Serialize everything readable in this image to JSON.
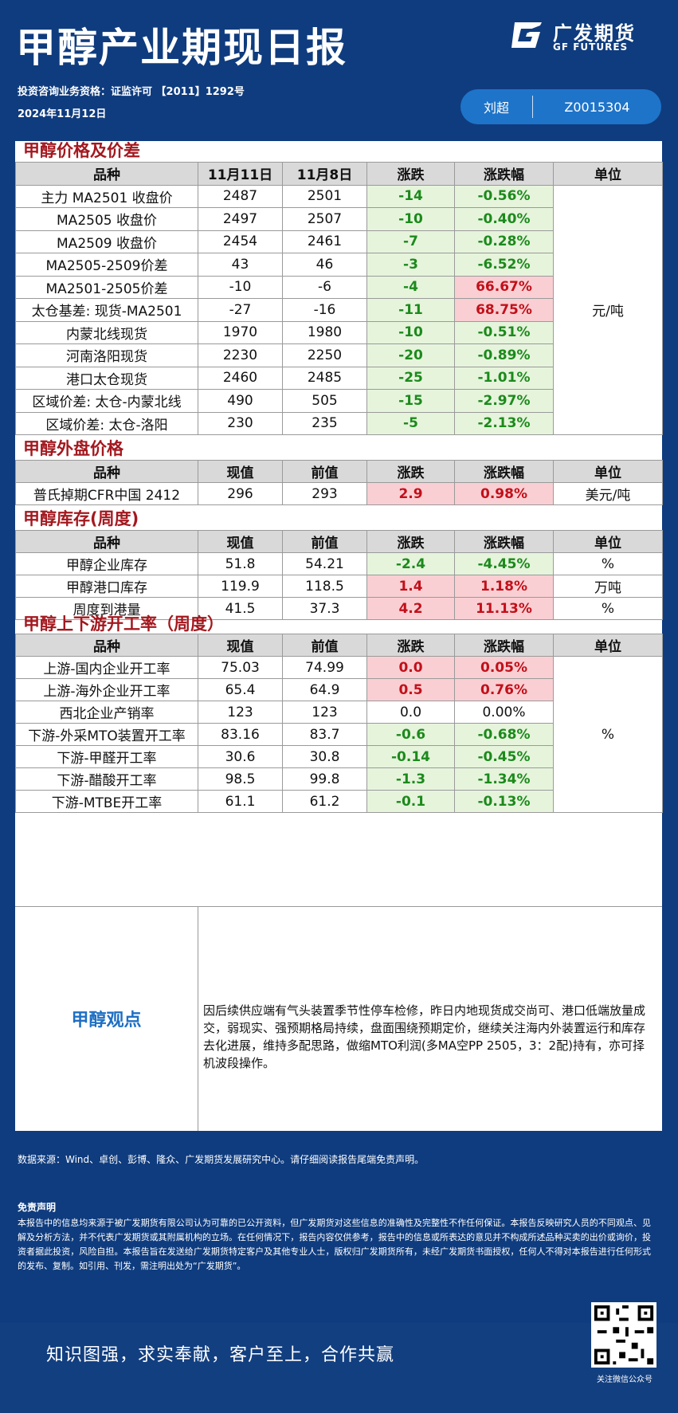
{
  "header": {
    "title": "甲醇产业期现日报",
    "logo_cn": "广发期货",
    "logo_en": "GF FUTURES",
    "license": "投资咨询业务资格：证监许可 【2011】1292号",
    "date": "2024年11月12日",
    "analyst_name": "刘超",
    "analyst_id": "Z0015304"
  },
  "colors": {
    "background": "#0f3c7e",
    "section_title": "#a3181f",
    "down": "#1c8a1c",
    "up": "#c2101a",
    "view_label": "#1e6fc4"
  },
  "sections": {
    "price": {
      "title": "甲醇价格及价差",
      "headers": [
        "品种",
        "11月11日",
        "11月8日",
        "涨跌",
        "涨跌幅",
        "单位"
      ],
      "unit": "元/吨",
      "rows": [
        {
          "name": "主力 MA2501 收盘价",
          "v1": "2487",
          "v2": "2501",
          "chg": "-14",
          "pct": "-0.56%",
          "chg_t": "g",
          "pct_t": "g"
        },
        {
          "name": "MA2505 收盘价",
          "v1": "2497",
          "v2": "2507",
          "chg": "-10",
          "pct": "-0.40%",
          "chg_t": "g",
          "pct_t": "g"
        },
        {
          "name": "MA2509 收盘价",
          "v1": "2454",
          "v2": "2461",
          "chg": "-7",
          "pct": "-0.28%",
          "chg_t": "g",
          "pct_t": "g"
        },
        {
          "name": "MA2505-2509价差",
          "v1": "43",
          "v2": "46",
          "chg": "-3",
          "pct": "-6.52%",
          "chg_t": "g",
          "pct_t": "g"
        },
        {
          "name": "MA2501-2505价差",
          "v1": "-10",
          "v2": "-6",
          "chg": "-4",
          "pct": "66.67%",
          "chg_t": "g",
          "pct_t": "r"
        },
        {
          "name": "太仓基差: 现货-MA2501",
          "v1": "-27",
          "v2": "-16",
          "chg": "-11",
          "pct": "68.75%",
          "chg_t": "g",
          "pct_t": "r"
        },
        {
          "name": "内蒙北线现货",
          "v1": "1970",
          "v2": "1980",
          "chg": "-10",
          "pct": "-0.51%",
          "chg_t": "g",
          "pct_t": "g"
        },
        {
          "name": "河南洛阳现货",
          "v1": "2230",
          "v2": "2250",
          "chg": "-20",
          "pct": "-0.89%",
          "chg_t": "g",
          "pct_t": "g"
        },
        {
          "name": "港口太仓现货",
          "v1": "2460",
          "v2": "2485",
          "chg": "-25",
          "pct": "-1.01%",
          "chg_t": "g",
          "pct_t": "g"
        },
        {
          "name": "区域价差: 太仓-内蒙北线",
          "v1": "490",
          "v2": "505",
          "chg": "-15",
          "pct": "-2.97%",
          "chg_t": "g",
          "pct_t": "g"
        },
        {
          "name": "区域价差: 太仓-洛阳",
          "v1": "230",
          "v2": "235",
          "chg": "-5",
          "pct": "-2.13%",
          "chg_t": "g",
          "pct_t": "g"
        }
      ]
    },
    "external": {
      "title": "甲醇外盘价格",
      "headers": [
        "品种",
        "现值",
        "前值",
        "涨跌",
        "涨跌幅",
        "单位"
      ],
      "rows": [
        {
          "name": "普氏掉期CFR中国 2412",
          "v1": "296",
          "v2": "293",
          "chg": "2.9",
          "pct": "0.98%",
          "chg_t": "r",
          "pct_t": "r",
          "unit": "美元/吨"
        }
      ]
    },
    "inventory": {
      "title": "甲醇库存(周度)",
      "headers": [
        "品种",
        "现值",
        "前值",
        "涨跌",
        "涨跌幅",
        "单位"
      ],
      "rows": [
        {
          "name": "甲醇企业库存",
          "v1": "51.8",
          "v2": "54.21",
          "chg": "-2.4",
          "pct": "-4.45%",
          "chg_t": "g",
          "pct_t": "g",
          "unit": "%"
        },
        {
          "name": "甲醇港口库存",
          "v1": "119.9",
          "v2": "118.5",
          "chg": "1.4",
          "pct": "1.18%",
          "chg_t": "r",
          "pct_t": "r",
          "unit": "万吨"
        },
        {
          "name": "周度到港量",
          "v1": "41.5",
          "v2": "37.3",
          "chg": "4.2",
          "pct": "11.13%",
          "chg_t": "r",
          "pct_t": "r",
          "unit": "%"
        }
      ]
    },
    "operating": {
      "title": "甲醇上下游开工率（周度）",
      "headers": [
        "品种",
        "现值",
        "前值",
        "涨跌",
        "涨跌幅",
        "单位"
      ],
      "unit": "%",
      "rows": [
        {
          "name": "上游-国内企业开工率",
          "v1": "75.03",
          "v2": "74.99",
          "chg": "0.0",
          "pct": "0.05%",
          "chg_t": "r",
          "pct_t": "r"
        },
        {
          "name": "上游-海外企业开工率",
          "v1": "65.4",
          "v2": "64.9",
          "chg": "0.5",
          "pct": "0.76%",
          "chg_t": "r",
          "pct_t": "r"
        },
        {
          "name": "西北企业产销率",
          "v1": "123",
          "v2": "123",
          "chg": "0.0",
          "pct": "0.00%",
          "chg_t": "n",
          "pct_t": "n"
        },
        {
          "name": "下游-外采MTO装置开工率",
          "v1": "83.16",
          "v2": "83.7",
          "chg": "-0.6",
          "pct": "-0.68%",
          "chg_t": "g",
          "pct_t": "g"
        },
        {
          "name": "下游-甲醛开工率",
          "v1": "30.6",
          "v2": "30.8",
          "chg": "-0.14",
          "pct": "-0.45%",
          "chg_t": "g",
          "pct_t": "g"
        },
        {
          "name": "下游-醋酸开工率",
          "v1": "98.5",
          "v2": "99.8",
          "chg": "-1.3",
          "pct": "-1.34%",
          "chg_t": "g",
          "pct_t": "g"
        },
        {
          "name": "下游-MTBE开工率",
          "v1": "61.1",
          "v2": "61.2",
          "chg": "-0.1",
          "pct": "-0.13%",
          "chg_t": "g",
          "pct_t": "g"
        }
      ]
    }
  },
  "view": {
    "label": "甲醇观点",
    "text": "因后续供应端有气头装置季节性停车检修，昨日内地现货成交尚可、港口低端放量成交，弱现实、强预期格局持续，盘面围绕预期定价，继续关注海内外装置运行和库存去化进展，维持多配思路，做缩MTO利润(多MA空PP 2505，3：2配)持有，亦可择机波段操作。"
  },
  "footer": {
    "source": "数据来源：Wind、卓创、彭博、隆众、广发期货发展研究中心。请仔细阅读报告尾端免责声明。",
    "disclaimer_title": "免责声明",
    "disclaimer": "本报告中的信息均来源于被广发期货有限公司认为可靠的已公开资料，但广发期货对这些信息的准确性及完整性不作任何保证。本报告反映研究人员的不同观点、见解及分析方法，并不代表广发期货或其附属机构的立场。在任何情况下，报告内容仅供参考，报告中的信息或所表达的意见并不构成所述品种买卖的出价或询价，投资者据此投资，风险自担。本报告旨在发送给广发期货特定客户及其他专业人士，版权归广发期货所有，未经广发期货书面授权，任何人不得对本报告进行任何形式的发布、复制。如引用、刊发，需注明出处为“广发期货”。",
    "motto": "知识图强，求实奉献，客户至上，合作共赢",
    "qr_label": "关注微信公众号"
  }
}
